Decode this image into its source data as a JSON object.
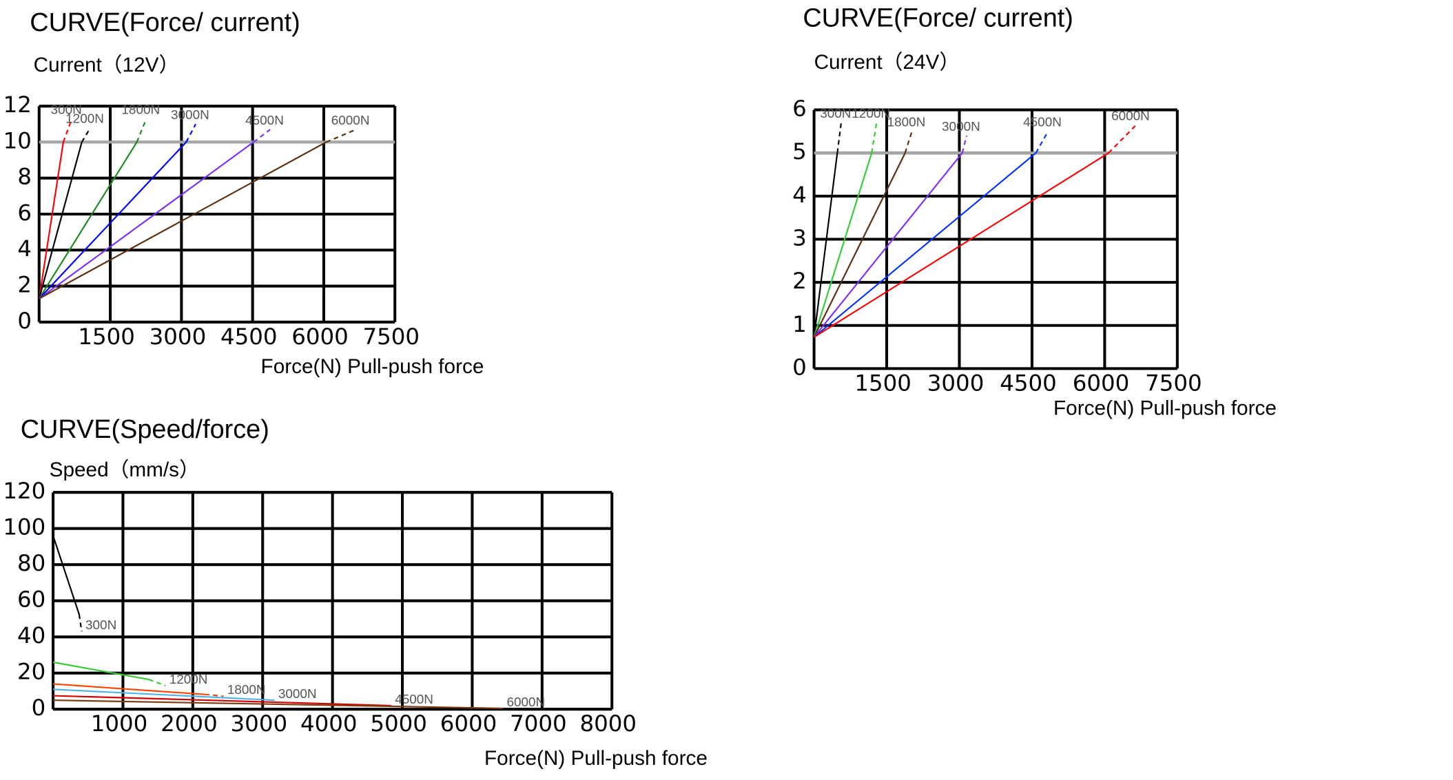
{
  "chart_data": [
    {
      "type": "line",
      "title": "CURVE(Force/ current)",
      "y_label": "Current（12V）",
      "x_label": "Force(N) Pull-push force",
      "xlim": [
        0,
        7500
      ],
      "ylim": [
        0,
        12
      ],
      "xticks": [
        1500,
        3000,
        4500,
        6000,
        7500
      ],
      "yticks": [
        0,
        2,
        4,
        6,
        8,
        10,
        12
      ],
      "grid": true,
      "hline": {
        "value": 10,
        "color": "#a6a6a6"
      },
      "series": [
        {
          "name": "300N",
          "color": "#ff0000",
          "x": [
            0,
            510,
            690
          ],
          "values": [
            1.3,
            10,
            11.3
          ]
        },
        {
          "name": "1200N",
          "color": "#000000",
          "x": [
            0,
            900,
            1080
          ],
          "values": [
            1.3,
            10,
            10.8
          ]
        },
        {
          "name": "1800N",
          "color": "#1a8a1a",
          "x": [
            0,
            2060,
            2260
          ],
          "values": [
            1.3,
            10,
            11.3
          ]
        },
        {
          "name": "3000N",
          "color": "#0000ff",
          "x": [
            0,
            3100,
            3300
          ],
          "values": [
            1.3,
            10,
            11
          ]
        },
        {
          "name": "4500N",
          "color": "#7b2ff7",
          "x": [
            0,
            4520,
            4870
          ],
          "values": [
            1.3,
            10,
            10.7
          ]
        },
        {
          "name": "6000N",
          "color": "#5a2d0c",
          "x": [
            0,
            6050,
            6680
          ],
          "values": [
            1.3,
            10,
            10.7
          ]
        }
      ]
    },
    {
      "type": "line",
      "title": "CURVE(Force/ current)",
      "y_label": "Current（24V）",
      "x_label": "Force(N) Pull-push force",
      "xlim": [
        0,
        7500
      ],
      "ylim": [
        0,
        6
      ],
      "xticks": [
        1500,
        3000,
        4500,
        6000,
        7500
      ],
      "yticks": [
        0,
        1,
        2,
        3,
        4,
        5,
        6
      ],
      "grid": true,
      "hline": {
        "value": 5,
        "color": "#a6a6a6"
      },
      "series": [
        {
          "name": "300N",
          "color": "#000000",
          "x": [
            0,
            480,
            560
          ],
          "values": [
            0.73,
            5,
            5.7
          ]
        },
        {
          "name": "1200N",
          "color": "#33cc33",
          "x": [
            0,
            1190,
            1290
          ],
          "values": [
            0.73,
            5,
            5.7
          ]
        },
        {
          "name": "1800N",
          "color": "#5a2d0c",
          "x": [
            0,
            1880,
            2020
          ],
          "values": [
            0.73,
            5,
            5.5
          ]
        },
        {
          "name": "3000N",
          "color": "#7b2ff7",
          "x": [
            0,
            3060,
            3150
          ],
          "values": [
            0.73,
            5,
            5.4
          ]
        },
        {
          "name": "4500N",
          "color": "#0033ff",
          "x": [
            0,
            4580,
            4830
          ],
          "values": [
            0.73,
            5,
            5.5
          ]
        },
        {
          "name": "6000N",
          "color": "#ff0000",
          "x": [
            0,
            6080,
            6650
          ],
          "values": [
            0.73,
            5,
            5.65
          ]
        }
      ]
    },
    {
      "type": "line",
      "title": "CURVE(Speed/force)",
      "y_label": "Speed（mm/s）",
      "x_label": "Force(N) Pull-push force",
      "xlim": [
        0,
        8000
      ],
      "ylim": [
        0,
        120
      ],
      "xticks": [
        1000,
        2000,
        3000,
        4000,
        5000,
        6000,
        7000,
        8000
      ],
      "yticks": [
        0,
        20,
        40,
        60,
        80,
        100,
        120
      ],
      "grid": true,
      "series": [
        {
          "name": "300N",
          "color": "#000000",
          "x": [
            0,
            373,
            410
          ],
          "values": [
            96,
            52.5,
            43
          ]
        },
        {
          "name": "1200N",
          "color": "#33cc33",
          "x": [
            0,
            1370,
            1610
          ],
          "values": [
            26,
            16.5,
            13
          ]
        },
        {
          "name": "1800N",
          "color": "#ff4500",
          "x": [
            0,
            2170,
            2440
          ],
          "values": [
            14,
            8.2,
            7.2
          ]
        },
        {
          "name": "3000N",
          "color": "#4fb3e8",
          "x": [
            0,
            3170
          ],
          "values": [
            11,
            5
          ]
        },
        {
          "name": "4500N",
          "color": "#d40000",
          "x": [
            0,
            4840
          ],
          "values": [
            7.5,
            2
          ]
        },
        {
          "name": "6000N",
          "color": "#7a3b10",
          "x": [
            0,
            6440
          ],
          "values": [
            5,
            0.5
          ]
        }
      ]
    }
  ]
}
